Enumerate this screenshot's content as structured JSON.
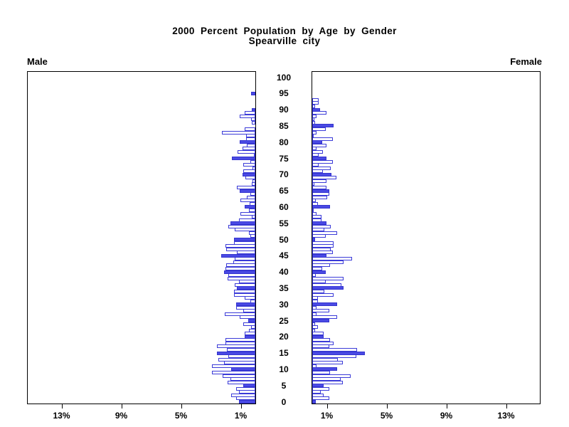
{
  "title": {
    "line1": "2000 Percent Population by Age by Gender",
    "line2": "Spearville city"
  },
  "labels": {
    "male": "Male",
    "female": "Female"
  },
  "colors": {
    "bar_fill": "#4a4ae4",
    "bar_outline": "#3b3bd8",
    "axis": "#000000",
    "text": "#000000",
    "background": "#ffffff"
  },
  "chart_data": {
    "type": "bar",
    "subtype": "population-pyramid",
    "title": "2000 Percent Population by Age by Gender",
    "subtitle": "Spearville city",
    "orientation": "horizontal back-to-back, male left, female right",
    "age_min": 0,
    "age_max": 100,
    "age_axis_tick_labels": [
      "0",
      "5",
      "10",
      "15",
      "20",
      "25",
      "30",
      "35",
      "40",
      "45",
      "50",
      "55",
      "60",
      "65",
      "70",
      "75",
      "80",
      "85",
      "90",
      "95",
      "100"
    ],
    "pct_axis_ticks": [
      1,
      5,
      9,
      13
    ],
    "pct_axis_tick_labels": [
      "1%",
      "5%",
      "9%",
      "13%"
    ],
    "xlim_pct": [
      0,
      15
    ],
    "highlight_every": 5,
    "legend_position": "none",
    "grid": false,
    "series": [
      {
        "name": "Male",
        "values": [
          1.1,
          1.3,
          1.6,
          1.1,
          1.3,
          0.8,
          1.85,
          1.65,
          2.2,
          2.9,
          1.6,
          2.9,
          2.1,
          2.5,
          1.8,
          2.55,
          1.9,
          2.55,
          2.0,
          2.0,
          0.7,
          0.7,
          0.45,
          0.3,
          0.8,
          0.5,
          1.05,
          2.05,
          0.8,
          1.3,
          1.3,
          0.35,
          0.7,
          1.45,
          1.45,
          1.25,
          1.4,
          1.1,
          1.85,
          1.8,
          2.1,
          2.0,
          1.95,
          1.5,
          1.4,
          2.3,
          1.25,
          1.95,
          2.0,
          1.45,
          1.45,
          0.35,
          0.45,
          1.4,
          1.8,
          1.65,
          1.1,
          0.25,
          1.0,
          0.45,
          0.7,
          0.4,
          1.0,
          0.55,
          0.35,
          1.05,
          1.25,
          0.25,
          0.2,
          0.65,
          0.85,
          0.8,
          0.2,
          0.8,
          0.35,
          1.55,
          0.1,
          1.2,
          0.85,
          0.55,
          1.05,
          0.6,
          0.6,
          2.25,
          0.7,
          0.0,
          0.25,
          0.3,
          1.05,
          0.7,
          0.25,
          0.0,
          0.0,
          0.0,
          0.0,
          0.3,
          0.0,
          0.0,
          0.0,
          0.0,
          0.0
        ]
      },
      {
        "name": "Female",
        "values": [
          0.25,
          1.15,
          0.75,
          0.55,
          1.15,
          0.75,
          2.05,
          1.9,
          2.55,
          1.2,
          1.65,
          0.3,
          2.05,
          1.7,
          2.95,
          3.5,
          3.0,
          1.15,
          1.45,
          1.2,
          0.75,
          0.75,
          0.2,
          0.4,
          0.2,
          1.15,
          1.65,
          0.3,
          1.15,
          0.3,
          1.65,
          0.4,
          0.4,
          1.45,
          0.8,
          2.1,
          1.95,
          0.9,
          2.1,
          0.25,
          0.9,
          0.65,
          1.2,
          2.1,
          2.65,
          0.95,
          1.4,
          1.25,
          1.45,
          1.45,
          0.2,
          0.9,
          1.65,
          0.8,
          1.25,
          0.95,
          0.6,
          0.6,
          0.3,
          0.1,
          1.2,
          0.4,
          0.25,
          1.0,
          1.15,
          1.15,
          0.95,
          0.15,
          0.95,
          1.6,
          1.3,
          0.7,
          1.25,
          0.45,
          1.4,
          0.95,
          0.45,
          0.7,
          0.3,
          0.95,
          0.65,
          1.4,
          0.1,
          0.3,
          0.9,
          1.45,
          0.2,
          0.15,
          0.3,
          0.95,
          0.5,
          0.2,
          0.45,
          0.45,
          0.0,
          0.0,
          0.0,
          0.0,
          0.0,
          0.0,
          0.0
        ]
      }
    ]
  }
}
